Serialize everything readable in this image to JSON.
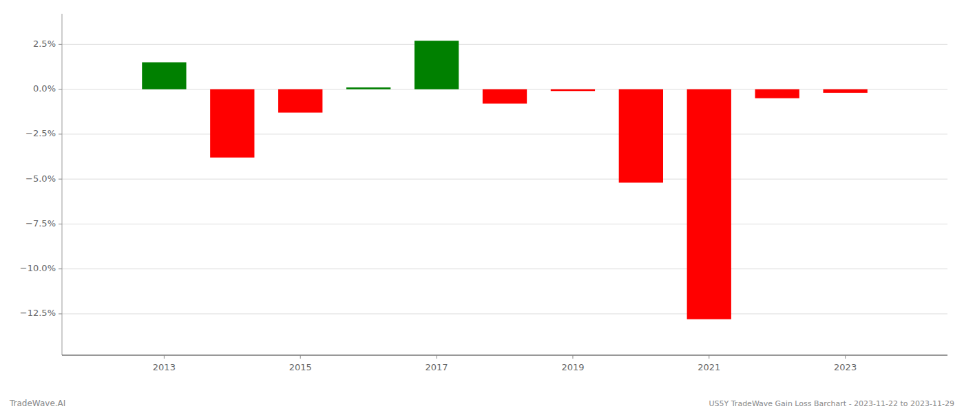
{
  "chart_data": {
    "type": "bar",
    "x": [
      2013,
      2014,
      2015,
      2016,
      2017,
      2018,
      2019,
      2020,
      2021,
      2022,
      2023
    ],
    "values": [
      0.015,
      -0.038,
      -0.013,
      0.001,
      0.027,
      -0.008,
      -0.001,
      -0.052,
      -0.128,
      -0.005,
      -0.002
    ],
    "colors": [
      "#008000",
      "#ff0000",
      "#ff0000",
      "#008000",
      "#008000",
      "#ff0000",
      "#ff0000",
      "#ff0000",
      "#ff0000",
      "#ff0000",
      "#ff0000"
    ],
    "xlim": [
      2011.5,
      2024.5
    ],
    "xticks": [
      2013,
      2015,
      2017,
      2019,
      2021,
      2023
    ],
    "ylim": [
      -0.148,
      0.042
    ],
    "yticks": [
      {
        "value": 0.025,
        "label": "2.5%"
      },
      {
        "value": 0.0,
        "label": "0.0%"
      },
      {
        "value": -0.025,
        "label": "−2.5%"
      },
      {
        "value": -0.05,
        "label": "−5.0%"
      },
      {
        "value": -0.075,
        "label": "−7.5%"
      },
      {
        "value": -0.1,
        "label": "−10.0%"
      },
      {
        "value": -0.125,
        "label": "−12.5%"
      }
    ],
    "grid": true,
    "annotations": [
      "TradeWave.AI",
      "US5Y TradeWave Gain Loss Barchart - 2023-11-22 to 2023-11-29"
    ]
  }
}
